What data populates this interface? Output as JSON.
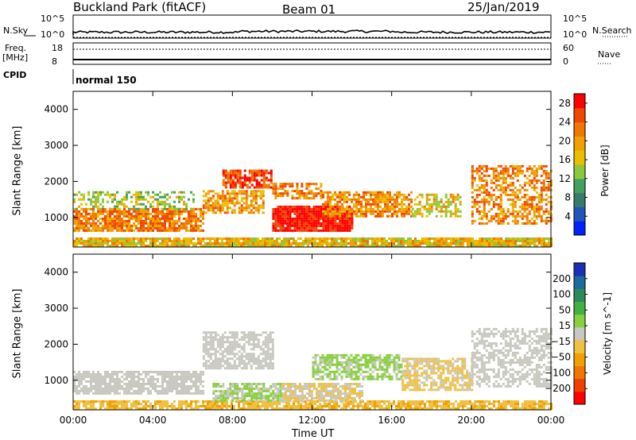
{
  "header": {
    "station": "Buckland Park (fitACF)",
    "beam": "Beam 01",
    "date": "25/Jan/2019"
  },
  "strip": {
    "nsky_label": "N.Sky",
    "nsky_ticks": [
      "10^5",
      "10^0"
    ],
    "nsearch_label": "N.Search",
    "nsearch_ticks": [
      "10^5",
      "10^0"
    ],
    "freq_label_line1": "Freq.",
    "freq_label_line2": "[MHz]",
    "freq_ticks": [
      "18",
      "8"
    ],
    "nave_label": "Nave",
    "nave_ticks": [
      "60",
      "0"
    ],
    "cpid_label": "CPID",
    "cpid_value": "normal 150"
  },
  "chart_data": [
    {
      "type": "heatmap",
      "title": "",
      "xlabel": "Time UT",
      "ylabel": "Slant Range [km]",
      "x_ticks": [
        "00:00",
        "04:00",
        "08:00",
        "12:00",
        "16:00",
        "20:00",
        "00:00"
      ],
      "y_ticks": [
        "1000",
        "2000",
        "3000",
        "4000"
      ],
      "xlim_hours": [
        0,
        24
      ],
      "ylim_km": [
        180,
        4500
      ],
      "colorbar": {
        "label": "Power [dB]",
        "ticks": [
          "4",
          "8",
          "12",
          "16",
          "20",
          "24",
          "28"
        ],
        "range": [
          0,
          30
        ],
        "colors": [
          "#0022ff",
          "#2255bb",
          "#3a7a6a",
          "#44a060",
          "#8cc83c",
          "#e8c000",
          "#f0a000",
          "#f07800",
          "#f04800",
          "#ff0000"
        ]
      },
      "regions": [
        {
          "t0": 0.0,
          "t1": 24.0,
          "r0": 180,
          "r1": 420,
          "value": 18,
          "density": 0.9
        },
        {
          "t0": 0.0,
          "t1": 6.5,
          "r0": 600,
          "r1": 1200,
          "value": 22,
          "density": 0.85
        },
        {
          "t0": 0.0,
          "t1": 6.0,
          "r0": 1200,
          "r1": 1700,
          "value": 14,
          "density": 0.45
        },
        {
          "t0": 6.5,
          "t1": 9.5,
          "r0": 1100,
          "r1": 1700,
          "value": 20,
          "density": 0.7
        },
        {
          "t0": 7.5,
          "t1": 10.0,
          "r0": 1800,
          "r1": 2300,
          "value": 26,
          "density": 0.75
        },
        {
          "t0": 10.0,
          "t1": 14.0,
          "r0": 600,
          "r1": 1300,
          "value": 29,
          "density": 0.95
        },
        {
          "t0": 10.0,
          "t1": 12.5,
          "r0": 1500,
          "r1": 1900,
          "value": 22,
          "density": 0.6
        },
        {
          "t0": 12.5,
          "t1": 17.0,
          "r0": 1000,
          "r1": 1700,
          "value": 21,
          "density": 0.7
        },
        {
          "t0": 17.0,
          "t1": 19.5,
          "r0": 1000,
          "r1": 1600,
          "value": 17,
          "density": 0.6
        },
        {
          "t0": 20.0,
          "t1": 24.0,
          "r0": 800,
          "r1": 2400,
          "value": 22,
          "density": 0.55
        }
      ]
    },
    {
      "type": "heatmap",
      "title": "",
      "xlabel": "Time UT",
      "ylabel": "Slant Range [km]",
      "x_ticks": [
        "00:00",
        "04:00",
        "08:00",
        "12:00",
        "16:00",
        "20:00",
        "00:00"
      ],
      "y_ticks": [
        "1000",
        "2000",
        "3000",
        "4000"
      ],
      "xlim_hours": [
        0,
        24
      ],
      "ylim_km": [
        180,
        4500
      ],
      "colorbar": {
        "label": "Velocity [m s^-1]",
        "ticks": [
          "200",
          "100",
          "50",
          "15",
          "−15",
          "−50",
          "−100",
          "−200"
        ],
        "range": [
          -250,
          250
        ],
        "colors": [
          "#1a2fb5",
          "#1e6a9a",
          "#2f8a5a",
          "#44b044",
          "#88d040",
          "#c8c8c0",
          "#f0c040",
          "#f0a000",
          "#f07800",
          "#f04000",
          "#ff0000"
        ]
      },
      "regions": [
        {
          "t0": 0.0,
          "t1": 24.0,
          "r0": 180,
          "r1": 420,
          "value": -60,
          "density": 0.8
        },
        {
          "t0": 0.0,
          "t1": 6.5,
          "r0": 600,
          "r1": 1200,
          "value": 0,
          "density": 0.8
        },
        {
          "t0": 6.5,
          "t1": 10.0,
          "r0": 1300,
          "r1": 2300,
          "value": 0,
          "density": 0.7
        },
        {
          "t0": 7.0,
          "t1": 10.5,
          "r0": 400,
          "r1": 900,
          "value": 25,
          "density": 0.8
        },
        {
          "t0": 10.5,
          "t1": 14.5,
          "r0": 400,
          "r1": 900,
          "value": -20,
          "density": 0.8
        },
        {
          "t0": 12.0,
          "t1": 16.5,
          "r0": 1000,
          "r1": 1700,
          "value": 30,
          "density": 0.7
        },
        {
          "t0": 16.5,
          "t1": 20.0,
          "r0": 700,
          "r1": 1600,
          "value": -30,
          "density": 0.7
        },
        {
          "t0": 20.0,
          "t1": 24.0,
          "r0": 800,
          "r1": 2400,
          "value": 0,
          "density": 0.55
        }
      ]
    }
  ]
}
